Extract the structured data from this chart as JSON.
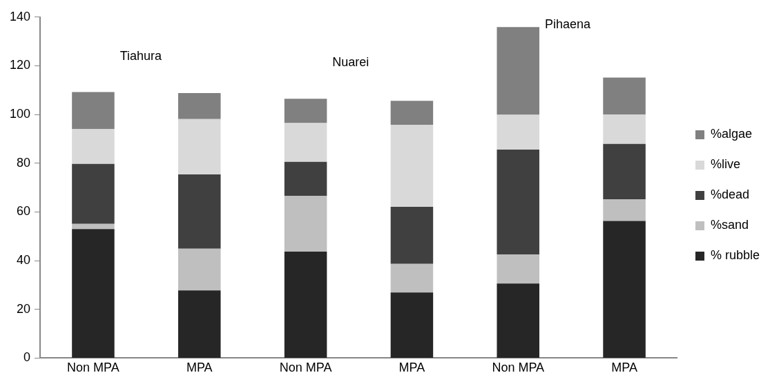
{
  "chart_data": {
    "type": "bar",
    "stacked": true,
    "categories": [
      "Non MPA",
      "MPA",
      "Non MPA",
      "MPA",
      "Non MPA",
      "MPA"
    ],
    "series": [
      {
        "name": "% rubble",
        "color": "#262626",
        "values": [
          53.0,
          27.8,
          43.7,
          26.9,
          30.6,
          56.3
        ]
      },
      {
        "name": "%sand",
        "color": "#bfbfbf",
        "values": [
          2.1,
          17.1,
          22.9,
          11.8,
          12.0,
          8.9
        ]
      },
      {
        "name": "%dead",
        "color": "#404040",
        "values": [
          24.6,
          30.5,
          14.0,
          23.4,
          43.0,
          22.7
        ]
      },
      {
        "name": "%live",
        "color": "#d9d9d9",
        "values": [
          14.4,
          22.7,
          15.9,
          33.7,
          14.3,
          12.1
        ]
      },
      {
        "name": "%algae",
        "color": "#808080",
        "values": [
          15.1,
          10.7,
          10.0,
          9.8,
          36.0,
          15.2
        ]
      }
    ],
    "ylim": [
      0,
      140
    ],
    "yticks": [
      0,
      20,
      40,
      60,
      80,
      100,
      120,
      140
    ],
    "grid": false,
    "legend": "right",
    "annotations": [
      "Tiahura",
      "Nuarei",
      "Pihaena"
    ]
  }
}
